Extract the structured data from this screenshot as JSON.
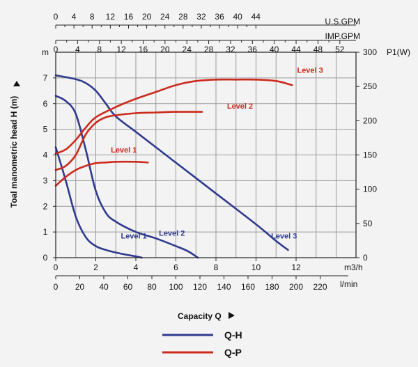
{
  "chart_data": {
    "type": "line",
    "colors": {
      "qh": "#2f3a8f",
      "qp": "#cc2a1c",
      "grid": "#9a9a9a",
      "frame": "#222222"
    },
    "x_axis": {
      "label": "m3/h",
      "range": [
        0,
        14.8
      ],
      "ticks": [
        "0",
        "2",
        "4",
        "6",
        "8",
        "10",
        "12"
      ],
      "tick_values": [
        0,
        2,
        4,
        6,
        8,
        10,
        12
      ]
    },
    "lmin_axis": {
      "label": "l/min",
      "ticks": [
        "0",
        "20",
        "40",
        "60",
        "80",
        "100",
        "120",
        "140",
        "160",
        "180",
        "200",
        "220"
      ],
      "tick_values": [
        0,
        20,
        40,
        60,
        80,
        100,
        120,
        140,
        160,
        180,
        200,
        220
      ]
    },
    "usgpm_axis": {
      "label": "U.S.GPM",
      "ticks": [
        "0",
        "4",
        "8",
        "12",
        "16",
        "20",
        "24",
        "28",
        "32",
        "36",
        "40",
        "44"
      ],
      "tick_values": [
        0,
        4,
        8,
        12,
        16,
        20,
        24,
        28,
        32,
        36,
        40,
        44
      ]
    },
    "impgpm_axis": {
      "label": "IMP.GPM",
      "ticks": [
        "0",
        "4",
        "8",
        "12",
        "16",
        "20",
        "24",
        "28",
        "32",
        "36",
        "40",
        "44",
        "48",
        "52"
      ],
      "tick_values": [
        0,
        4,
        8,
        12,
        16,
        20,
        24,
        28,
        32,
        36,
        40,
        44,
        48,
        52
      ]
    },
    "y_left": {
      "unit": "m",
      "label": "Toal manometric head H (m)",
      "range": [
        0,
        8
      ],
      "ticks": [
        "0",
        "1",
        "2",
        "3",
        "4",
        "5",
        "6",
        "7"
      ],
      "tick_values": [
        0,
        1,
        2,
        3,
        4,
        5,
        6,
        7
      ]
    },
    "y_right": {
      "unit": "P1(W)",
      "range": [
        0,
        300
      ],
      "ticks": [
        "0",
        "50",
        "100",
        "150",
        "200",
        "250",
        "300"
      ],
      "tick_values": [
        0,
        50,
        100,
        150,
        200,
        250,
        300
      ]
    },
    "xlabel": "Capacity Q",
    "series": [
      {
        "name": "Q-H Level 1",
        "kind": "qh",
        "label": "Level 1",
        "label_at": [
          3.9,
          0.75
        ],
        "points": [
          [
            0,
            4.3
          ],
          [
            0.5,
            3.0
          ],
          [
            1.0,
            1.6
          ],
          [
            1.5,
            0.8
          ],
          [
            2.0,
            0.45
          ],
          [
            2.5,
            0.3
          ],
          [
            3.0,
            0.2
          ],
          [
            3.5,
            0.12
          ],
          [
            4.0,
            0.05
          ],
          [
            4.3,
            0.0
          ]
        ]
      },
      {
        "name": "Q-H Level 2",
        "kind": "qh",
        "label": "Level 2",
        "label_at": [
          5.8,
          0.85
        ],
        "points": [
          [
            0,
            6.3
          ],
          [
            0.5,
            6.1
          ],
          [
            1.0,
            5.6
          ],
          [
            1.5,
            4.2
          ],
          [
            2.0,
            2.6
          ],
          [
            2.5,
            1.75
          ],
          [
            3.0,
            1.4
          ],
          [
            4.0,
            1.0
          ],
          [
            5.0,
            0.75
          ],
          [
            6.0,
            0.45
          ],
          [
            6.6,
            0.25
          ],
          [
            7.1,
            0.0
          ]
        ]
      },
      {
        "name": "Q-H Level 3",
        "kind": "qh",
        "label": "Level 3",
        "label_at": [
          11.4,
          0.75
        ],
        "points": [
          [
            0,
            7.1
          ],
          [
            1.0,
            6.95
          ],
          [
            1.5,
            6.8
          ],
          [
            2.0,
            6.5
          ],
          [
            2.5,
            6.0
          ],
          [
            3.0,
            5.5
          ],
          [
            4.0,
            4.9
          ],
          [
            6.0,
            3.7
          ],
          [
            8.0,
            2.5
          ],
          [
            10.0,
            1.3
          ],
          [
            11.0,
            0.65
          ],
          [
            11.6,
            0.3
          ]
        ]
      },
      {
        "name": "Q-P Level 1",
        "kind": "qp",
        "label": "Level 1",
        "label_at": [
          3.4,
          4.1
        ],
        "points": [
          [
            0,
            105
          ],
          [
            0.5,
            118
          ],
          [
            1.0,
            128
          ],
          [
            1.5,
            134
          ],
          [
            2.0,
            138
          ],
          [
            2.5,
            139
          ],
          [
            3.0,
            140
          ],
          [
            4.0,
            140
          ],
          [
            4.6,
            139
          ]
        ]
      },
      {
        "name": "Q-P Level 2",
        "kind": "qp",
        "label": "Level 2",
        "label_at": [
          9.2,
          5.8
        ],
        "points": [
          [
            0,
            128
          ],
          [
            0.5,
            134
          ],
          [
            1.0,
            150
          ],
          [
            1.5,
            180
          ],
          [
            2.0,
            197
          ],
          [
            2.5,
            205
          ],
          [
            3.0,
            208
          ],
          [
            4.0,
            211
          ],
          [
            5.0,
            212
          ],
          [
            6.0,
            213
          ],
          [
            7.3,
            213
          ]
        ]
      },
      {
        "name": "Q-P Level 3",
        "kind": "qp",
        "label": "Level 3",
        "label_at": [
          12.7,
          7.2
        ],
        "points": [
          [
            0,
            152
          ],
          [
            0.5,
            158
          ],
          [
            1.0,
            172
          ],
          [
            1.5,
            190
          ],
          [
            2.0,
            205
          ],
          [
            3.0,
            220
          ],
          [
            4.0,
            232
          ],
          [
            5.0,
            242
          ],
          [
            6.0,
            252
          ],
          [
            7.0,
            258
          ],
          [
            8.0,
            260
          ],
          [
            9.0,
            260
          ],
          [
            10.0,
            260
          ],
          [
            11.0,
            258
          ],
          [
            11.8,
            252
          ]
        ]
      }
    ],
    "legend": [
      {
        "kind": "qh",
        "label": "Q-H"
      },
      {
        "kind": "qp",
        "label": "Q-P"
      }
    ]
  }
}
